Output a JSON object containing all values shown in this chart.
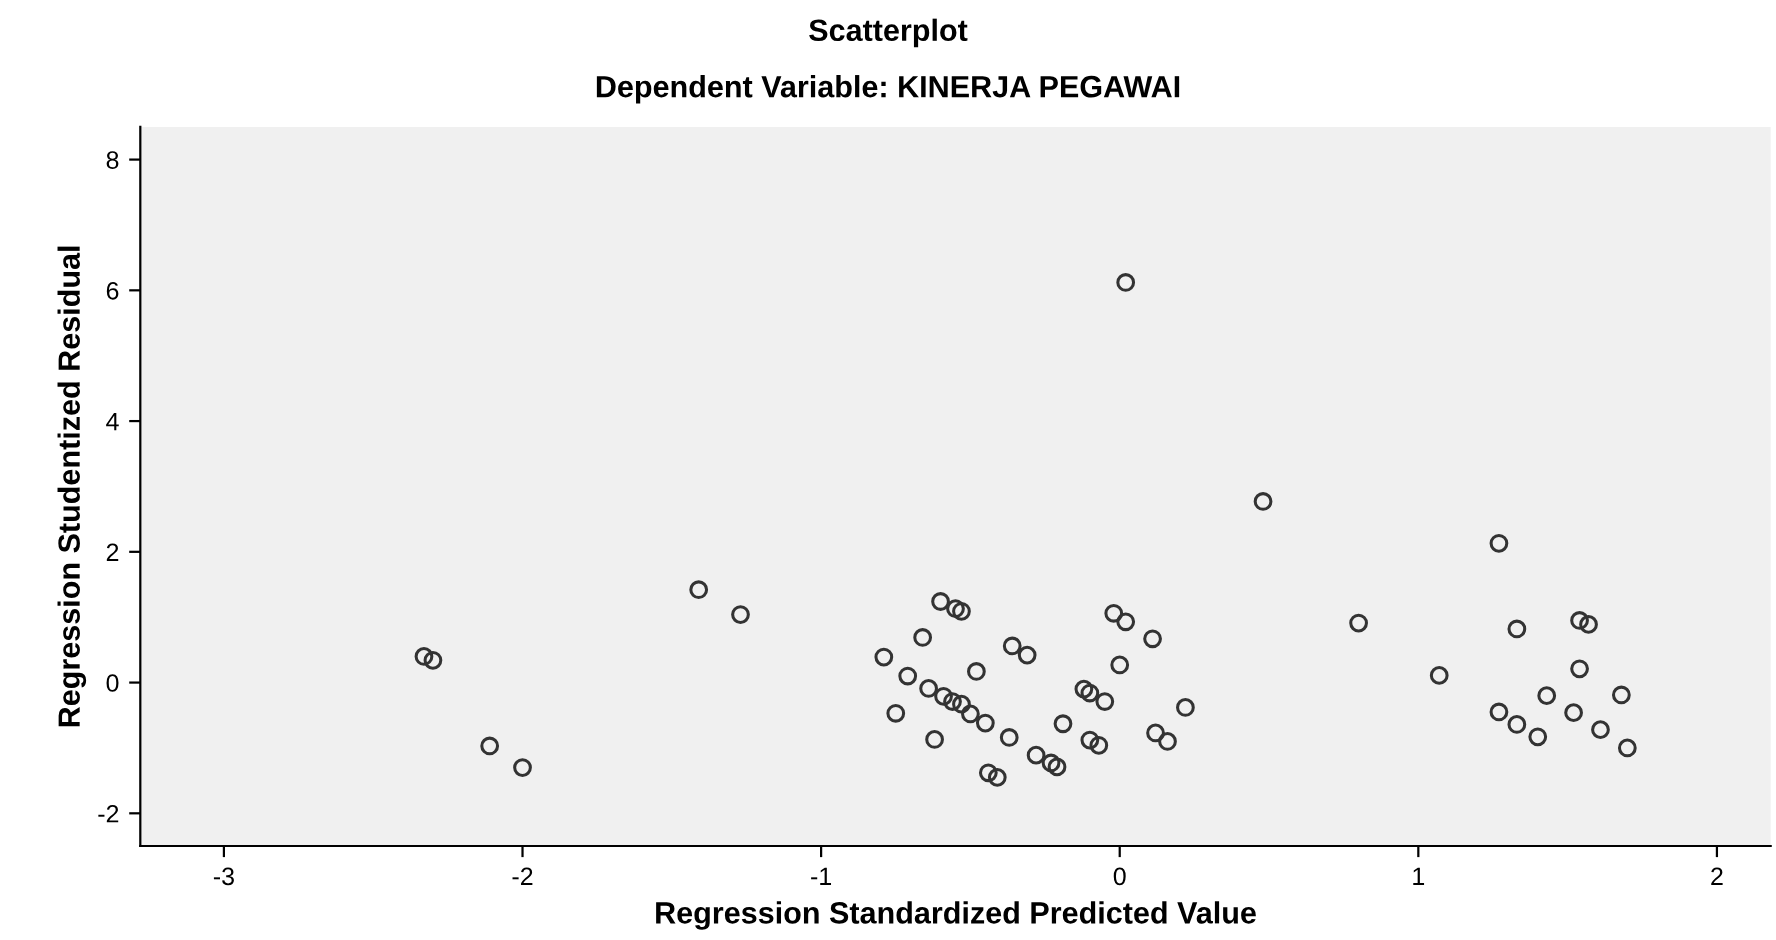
{
  "chart_data": {
    "type": "scatter",
    "title": "Scatterplot",
    "subtitle": "Dependent Variable: KINERJA PEGAWAI",
    "xlabel": "Regression Standardized Predicted Value",
    "ylabel": "Regression Studentized Residual",
    "xlim": [
      -3.28,
      2.18
    ],
    "ylim": [
      -2.5,
      8.5
    ],
    "xticks": [
      -3,
      -2,
      -1,
      0,
      1,
      2
    ],
    "yticks": [
      -2,
      0,
      2,
      4,
      6,
      8
    ],
    "grid": false,
    "marker": "circle",
    "series": [
      {
        "color": "#333333",
        "x": [
          -2.33,
          -2.3,
          -2.11,
          -2.0,
          -1.41,
          -1.27,
          -0.79,
          -0.71,
          -0.75,
          0.02,
          0.48,
          1.27,
          -0.6,
          -0.55,
          -0.53,
          -0.66,
          -0.64,
          -0.62,
          -0.59,
          -0.56,
          -0.53,
          -0.5,
          -0.45,
          -0.48,
          -0.37,
          -0.44,
          -0.41,
          -0.36,
          -0.31,
          -0.28,
          -0.23,
          -0.21,
          -0.19,
          -0.12,
          -0.1,
          -0.05,
          -0.1,
          -0.07,
          -0.02,
          0.02,
          0.11,
          0.0,
          0.12,
          0.16,
          0.22,
          0.8,
          1.07,
          1.33,
          1.54,
          1.57,
          1.54,
          1.43,
          1.68,
          1.27,
          1.33,
          1.4,
          1.52,
          1.61,
          1.7
        ],
        "values": [
          0.4,
          0.34,
          -0.97,
          -1.3,
          1.42,
          1.04,
          0.39,
          0.1,
          -0.47,
          6.12,
          2.77,
          2.13,
          1.24,
          1.13,
          1.09,
          0.69,
          -0.09,
          -0.87,
          -0.21,
          -0.29,
          -0.33,
          -0.48,
          -0.62,
          0.17,
          -0.84,
          -1.38,
          -1.45,
          0.56,
          0.42,
          -1.11,
          -1.23,
          -1.29,
          -0.63,
          -0.1,
          -0.16,
          -0.29,
          -0.88,
          -0.96,
          1.06,
          0.93,
          0.67,
          0.27,
          -0.77,
          -0.9,
          -0.38,
          0.91,
          0.11,
          0.82,
          0.95,
          0.89,
          0.21,
          -0.2,
          -0.19,
          -0.45,
          -0.64,
          -0.83,
          -0.46,
          -0.72,
          -1.0
        ]
      }
    ]
  }
}
